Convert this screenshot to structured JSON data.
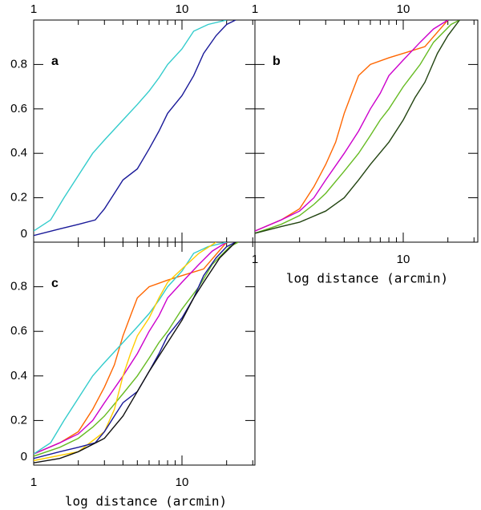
{
  "chart_data": [
    {
      "type": "line",
      "annotation": "a",
      "xlog": true,
      "xlim": [
        1,
        30
      ],
      "ylim": [
        0,
        1
      ],
      "xticks": [
        1,
        10
      ],
      "xminorticks": [
        2,
        3,
        4,
        5,
        6,
        7,
        8,
        9,
        20,
        30
      ],
      "yticks": [
        0,
        0.2,
        0.4,
        0.6,
        0.8
      ],
      "xtick_labels": "top",
      "ytick_labels": true,
      "series": [
        {
          "color": "#33cccc",
          "x": [
            1,
            1.3,
            1.6,
            2,
            2.5,
            3,
            4,
            5,
            6,
            7,
            8,
            10,
            12,
            15,
            20
          ],
          "values": [
            0.05,
            0.1,
            0.2,
            0.3,
            0.4,
            0.46,
            0.55,
            0.62,
            0.68,
            0.74,
            0.8,
            0.87,
            0.95,
            0.98,
            1.0
          ]
        },
        {
          "color": "#1a1a99",
          "x": [
            1,
            1.5,
            2,
            2.6,
            3,
            3.5,
            4,
            5,
            6,
            7,
            8,
            10,
            12,
            14,
            17,
            20,
            23
          ],
          "values": [
            0.03,
            0.06,
            0.08,
            0.1,
            0.15,
            0.22,
            0.28,
            0.33,
            0.42,
            0.5,
            0.58,
            0.66,
            0.75,
            0.85,
            0.93,
            0.98,
            1.0
          ]
        }
      ]
    },
    {
      "type": "line",
      "annotation": "b",
      "xlog": true,
      "xlim": [
        1,
        30
      ],
      "ylim": [
        0,
        1
      ],
      "xticks": [
        1,
        10
      ],
      "xminorticks": [
        2,
        3,
        4,
        5,
        6,
        7,
        8,
        9,
        20,
        30
      ],
      "yticks": [
        0,
        0.2,
        0.4,
        0.6,
        0.8
      ],
      "xtick_labels": "both",
      "ytick_labels": false,
      "x_label": "log distance (arcmin)",
      "series": [
        {
          "color": "#ff6600",
          "x": [
            1,
            1.5,
            2,
            2.5,
            3,
            3.5,
            4,
            4.5,
            5,
            6,
            8,
            10,
            14,
            20
          ],
          "values": [
            0.05,
            0.1,
            0.15,
            0.25,
            0.35,
            0.45,
            0.58,
            0.67,
            0.75,
            0.8,
            0.83,
            0.85,
            0.88,
            1.0
          ]
        },
        {
          "color": "#cc00cc",
          "x": [
            1,
            1.5,
            2,
            2.5,
            3,
            4,
            5,
            6,
            7,
            8,
            10,
            13,
            16,
            20
          ],
          "values": [
            0.05,
            0.1,
            0.14,
            0.2,
            0.28,
            0.4,
            0.5,
            0.6,
            0.67,
            0.75,
            0.82,
            0.9,
            0.96,
            1.0
          ]
        },
        {
          "color": "#66bb22",
          "x": [
            1,
            1.5,
            2,
            2.5,
            3,
            4,
            5,
            6,
            7,
            8,
            10,
            13,
            16,
            21,
            24
          ],
          "values": [
            0.04,
            0.08,
            0.12,
            0.17,
            0.22,
            0.32,
            0.4,
            0.48,
            0.55,
            0.6,
            0.7,
            0.8,
            0.9,
            0.98,
            1.0
          ]
        },
        {
          "color": "#224411",
          "x": [
            1,
            1.5,
            2,
            3,
            4,
            5,
            6,
            8,
            10,
            12,
            14,
            17,
            20,
            24
          ],
          "values": [
            0.04,
            0.07,
            0.09,
            0.14,
            0.2,
            0.28,
            0.35,
            0.45,
            0.55,
            0.65,
            0.72,
            0.85,
            0.93,
            1.0
          ]
        }
      ]
    },
    {
      "type": "line",
      "annotation": "c",
      "xlog": true,
      "xlim": [
        1,
        30
      ],
      "ylim": [
        0,
        1
      ],
      "xticks": [
        1,
        10
      ],
      "xminorticks": [
        2,
        3,
        4,
        5,
        6,
        7,
        8,
        9,
        20,
        30
      ],
      "yticks": [
        0,
        0.2,
        0.4,
        0.6,
        0.8
      ],
      "xtick_labels": "bottom",
      "ytick_labels": true,
      "x_label": "log distance (arcmin)",
      "series": [
        {
          "color": "#ff6600",
          "x": [
            1,
            1.5,
            2,
            2.5,
            3,
            3.5,
            4,
            4.5,
            5,
            6,
            8,
            10,
            14,
            20
          ],
          "values": [
            0.05,
            0.1,
            0.15,
            0.25,
            0.35,
            0.45,
            0.58,
            0.67,
            0.75,
            0.8,
            0.83,
            0.85,
            0.88,
            1.0
          ]
        },
        {
          "color": "#cc00cc",
          "x": [
            1,
            1.5,
            2,
            2.5,
            3,
            4,
            5,
            6,
            7,
            8,
            10,
            13,
            16,
            20
          ],
          "values": [
            0.05,
            0.1,
            0.14,
            0.2,
            0.28,
            0.4,
            0.5,
            0.6,
            0.67,
            0.75,
            0.82,
            0.9,
            0.96,
            1.0
          ]
        },
        {
          "color": "#33cccc",
          "x": [
            1,
            1.3,
            1.6,
            2,
            2.5,
            3,
            4,
            5,
            6,
            7,
            8,
            10,
            12,
            15,
            20
          ],
          "values": [
            0.05,
            0.1,
            0.2,
            0.3,
            0.4,
            0.46,
            0.55,
            0.62,
            0.68,
            0.74,
            0.8,
            0.87,
            0.95,
            0.98,
            1.0
          ]
        },
        {
          "color": "#66bb22",
          "x": [
            1,
            1.5,
            2,
            2.5,
            3,
            4,
            5,
            6,
            7,
            8,
            10,
            13,
            16,
            21,
            24
          ],
          "values": [
            0.04,
            0.08,
            0.12,
            0.17,
            0.22,
            0.32,
            0.4,
            0.48,
            0.55,
            0.6,
            0.7,
            0.8,
            0.9,
            0.98,
            1.0
          ]
        },
        {
          "color": "#ffcc00",
          "x": [
            1,
            2,
            3,
            3.5,
            4,
            4.5,
            5,
            6,
            7,
            8,
            10,
            13,
            17
          ],
          "values": [
            0.02,
            0.06,
            0.15,
            0.25,
            0.4,
            0.5,
            0.58,
            0.66,
            0.75,
            0.82,
            0.88,
            0.95,
            1.0
          ]
        },
        {
          "color": "#1a1a99",
          "x": [
            1,
            1.5,
            2,
            2.6,
            3,
            3.5,
            4,
            5,
            6,
            7,
            8,
            10,
            12,
            14,
            17,
            20,
            23
          ],
          "values": [
            0.03,
            0.06,
            0.08,
            0.1,
            0.15,
            0.22,
            0.28,
            0.33,
            0.42,
            0.5,
            0.58,
            0.66,
            0.75,
            0.85,
            0.93,
            0.98,
            1.0
          ]
        },
        {
          "color": "#111111",
          "x": [
            1,
            1.5,
            2,
            3,
            4,
            5,
            6,
            8,
            10,
            12,
            14,
            18,
            23
          ],
          "values": [
            0.01,
            0.03,
            0.06,
            0.12,
            0.22,
            0.33,
            0.42,
            0.55,
            0.65,
            0.75,
            0.82,
            0.93,
            1.0
          ]
        }
      ]
    }
  ]
}
